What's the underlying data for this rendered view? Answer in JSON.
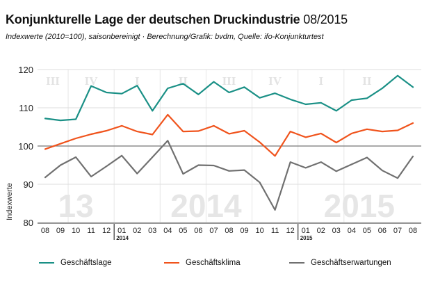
{
  "header": {
    "title": "Konjunkturelle Lage der deutschen Druckindustrie",
    "title_date": "08/2015",
    "subtitle": "Indexwerte (2010=100), saisonbereinigt · Berechnung/Grafik: bvdm, Quelle: ifo-Konjunkturtest"
  },
  "chart_data": {
    "type": "line",
    "ylabel": "Indexwerte",
    "ylim": [
      80,
      120
    ],
    "yticks": [
      80,
      90,
      100,
      110,
      120
    ],
    "grid": true,
    "reference_line": 100,
    "categories": [
      "08",
      "09",
      "10",
      "11",
      "12",
      "01",
      "02",
      "03",
      "04",
      "05",
      "06",
      "07",
      "08",
      "09",
      "10",
      "11",
      "12",
      "01",
      "02",
      "03",
      "04",
      "05",
      "06",
      "07",
      "08"
    ],
    "year_labels": [
      {
        "label": "2014",
        "index": 5
      },
      {
        "label": "2015",
        "index": 17
      }
    ],
    "quarters": [
      {
        "label": "III",
        "start": 0,
        "end": 1
      },
      {
        "label": "IV",
        "start": 2,
        "end": 4
      },
      {
        "label": "I",
        "start": 5,
        "end": 7
      },
      {
        "label": "II",
        "start": 8,
        "end": 10
      },
      {
        "label": "III",
        "start": 11,
        "end": 13
      },
      {
        "label": "IV",
        "start": 14,
        "end": 16
      },
      {
        "label": "I",
        "start": 17,
        "end": 19
      },
      {
        "label": "II",
        "start": 20,
        "end": 22
      }
    ],
    "background_years": [
      {
        "label": "13",
        "start": 0,
        "end": 4
      },
      {
        "label": "2014",
        "start": 5,
        "end": 16
      },
      {
        "label": "2015",
        "start": 17,
        "end": 24
      }
    ],
    "legend_position": "bottom",
    "series": [
      {
        "name": "Geschäftslage",
        "color": "#1a9086",
        "values": [
          107.2,
          106.7,
          107.0,
          115.7,
          114.0,
          113.7,
          115.8,
          109.2,
          115.1,
          116.3,
          113.5,
          116.8,
          114.0,
          115.4,
          112.6,
          113.8,
          112.2,
          110.9,
          111.3,
          109.2,
          112.0,
          112.5,
          115.1,
          118.4,
          115.4
        ]
      },
      {
        "name": "Geschäftsklima",
        "color": "#f0531c",
        "values": [
          99.2,
          100.6,
          102.0,
          103.1,
          104.0,
          105.3,
          103.8,
          103.0,
          108.2,
          103.8,
          103.9,
          105.3,
          103.2,
          104.0,
          101.0,
          97.4,
          103.8,
          102.3,
          103.3,
          100.9,
          103.3,
          104.4,
          103.8,
          104.1,
          106.0
        ]
      },
      {
        "name": "Geschäftserwartungen",
        "color": "#707070",
        "values": [
          91.8,
          95.0,
          97.1,
          92.0,
          94.7,
          97.5,
          92.8,
          97.1,
          101.4,
          92.7,
          95.0,
          94.9,
          93.5,
          93.7,
          90.5,
          83.3,
          95.8,
          94.3,
          95.8,
          93.4,
          95.2,
          97.0,
          93.6,
          91.6,
          97.3
        ]
      }
    ]
  }
}
